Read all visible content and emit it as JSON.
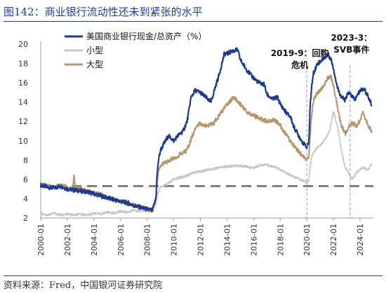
{
  "figure_title": "图142：商业银行流动性还未到紧张的水平",
  "source_note": "资料来源：Fred，中国银河证券研究院",
  "colors": {
    "large_commercial": "#1c3a8f",
    "small": "#c8c8c8",
    "large": "#b8956a",
    "reference_line": "#808080",
    "event_line": "#8fb4da",
    "header_rule": "#243f8a"
  },
  "chart_data": {
    "type": "line",
    "title": "",
    "xlabel": "",
    "ylabel": "",
    "x_unit": "year",
    "xlim": [
      2000.0,
      2025.0
    ],
    "ylim": [
      2,
      20
    ],
    "ytick_values": [
      2,
      4,
      6,
      8,
      10,
      12,
      14,
      16,
      18,
      20
    ],
    "xtick_values": [
      2000,
      2002,
      2004,
      2006,
      2008,
      2010,
      2012,
      2014,
      2016,
      2018,
      2020,
      2022,
      2024
    ],
    "xtick_labels": [
      "2000-01",
      "2002-01",
      "2004-01",
      "2006-01",
      "2008-01",
      "2010-01",
      "2012-01",
      "2014-01",
      "2016-01",
      "2018-01",
      "2020-01",
      "2022-01",
      "2024-01"
    ],
    "grid": false,
    "legend_position": "top-left",
    "series": [
      {
        "name": "美国商业银行现金/总资产（%）",
        "color_key": "large_commercial",
        "x": [
          2000.0,
          2000.5,
          2001.0,
          2001.5,
          2002.0,
          2002.5,
          2003.0,
          2003.5,
          2004.0,
          2004.5,
          2005.0,
          2005.5,
          2006.0,
          2006.5,
          2007.0,
          2007.5,
          2008.0,
          2008.4,
          2008.65,
          2008.75,
          2008.85,
          2009.0,
          2009.3,
          2009.6,
          2010.0,
          2010.3,
          2010.7,
          2011.0,
          2011.3,
          2011.6,
          2012.0,
          2012.4,
          2012.8,
          2013.0,
          2013.4,
          2013.8,
          2014.0,
          2014.4,
          2014.8,
          2015.0,
          2015.4,
          2015.8,
          2016.0,
          2016.4,
          2016.8,
          2017.0,
          2017.4,
          2017.8,
          2018.0,
          2018.4,
          2018.8,
          2019.0,
          2019.4,
          2019.8,
          2020.0,
          2020.15,
          2020.25,
          2020.35,
          2020.5,
          2020.8,
          2021.0,
          2021.3,
          2021.6,
          2021.8,
          2022.0,
          2022.3,
          2022.6,
          2022.9,
          2023.1,
          2023.3,
          2023.6,
          2024.0,
          2024.3,
          2024.6,
          2024.9
        ],
        "values": [
          5.4,
          5.2,
          5.1,
          5.3,
          5.0,
          4.9,
          4.8,
          4.7,
          4.5,
          4.3,
          4.1,
          3.9,
          3.7,
          3.6,
          3.3,
          3.1,
          2.9,
          2.8,
          4.0,
          6.5,
          8.0,
          9.0,
          9.8,
          10.5,
          10.0,
          10.5,
          11.0,
          12.0,
          14.5,
          15.2,
          15.0,
          14.5,
          14.0,
          15.0,
          16.8,
          19.0,
          19.0,
          19.3,
          19.4,
          18.4,
          17.5,
          16.8,
          16.5,
          16.0,
          15.8,
          14.8,
          14.3,
          14.5,
          13.8,
          13.0,
          12.4,
          11.5,
          10.5,
          9.6,
          9.4,
          9.8,
          13.5,
          15.5,
          17.0,
          18.0,
          18.2,
          18.6,
          18.9,
          18.5,
          17.5,
          15.5,
          14.5,
          14.2,
          15.0,
          14.8,
          14.2,
          15.2,
          15.4,
          14.6,
          13.6
        ]
      },
      {
        "name": "小型",
        "color_key": "small",
        "x": [
          2000.0,
          2000.5,
          2001.0,
          2001.5,
          2002.0,
          2002.5,
          2003.0,
          2003.5,
          2004.0,
          2004.5,
          2005.0,
          2005.5,
          2006.0,
          2006.5,
          2007.0,
          2007.5,
          2008.0,
          2008.4,
          2008.65,
          2008.8,
          2009.0,
          2009.5,
          2010.0,
          2010.5,
          2011.0,
          2011.5,
          2012.0,
          2012.5,
          2013.0,
          2013.5,
          2014.0,
          2014.5,
          2015.0,
          2015.5,
          2016.0,
          2016.5,
          2017.0,
          2017.5,
          2018.0,
          2018.5,
          2019.0,
          2019.5,
          2020.0,
          2020.15,
          2020.25,
          2020.4,
          2020.6,
          2020.9,
          2021.2,
          2021.5,
          2021.7,
          2021.85,
          2022.0,
          2022.3,
          2022.6,
          2022.9,
          2023.1,
          2023.4,
          2023.8,
          2024.2,
          2024.6,
          2024.9
        ],
        "values": [
          2.5,
          2.3,
          2.5,
          2.3,
          2.4,
          2.3,
          2.4,
          2.3,
          2.5,
          2.4,
          2.6,
          2.5,
          2.7,
          2.6,
          2.8,
          2.7,
          2.8,
          2.7,
          3.5,
          4.5,
          5.2,
          5.5,
          6.0,
          6.2,
          6.4,
          6.7,
          6.8,
          7.0,
          7.1,
          7.3,
          7.3,
          7.4,
          7.4,
          7.3,
          7.2,
          7.5,
          7.5,
          7.3,
          7.0,
          6.6,
          6.3,
          6.0,
          5.7,
          5.8,
          7.5,
          8.5,
          9.0,
          9.4,
          9.8,
          10.5,
          11.0,
          12.0,
          13.0,
          11.5,
          9.0,
          7.2,
          6.8,
          6.0,
          6.8,
          7.2,
          7.0,
          7.6
        ]
      },
      {
        "name": "大型",
        "color_key": "large",
        "x": [
          2000.0,
          2000.5,
          2001.0,
          2001.5,
          2002.0,
          2002.4,
          2002.5,
          2002.6,
          2003.0,
          2003.5,
          2004.0,
          2004.5,
          2005.0,
          2005.5,
          2006.0,
          2006.5,
          2007.0,
          2007.5,
          2008.0,
          2008.4,
          2008.65,
          2008.75,
          2008.85,
          2009.0,
          2009.5,
          2010.0,
          2010.5,
          2011.0,
          2011.4,
          2011.7,
          2012.0,
          2012.5,
          2013.0,
          2013.5,
          2014.0,
          2014.5,
          2015.0,
          2015.5,
          2016.0,
          2016.5,
          2017.0,
          2017.5,
          2018.0,
          2018.5,
          2019.0,
          2019.5,
          2020.0,
          2020.15,
          2020.25,
          2020.35,
          2020.5,
          2020.8,
          2021.0,
          2021.3,
          2021.6,
          2021.8,
          2022.0,
          2022.3,
          2022.6,
          2022.9,
          2023.1,
          2023.4,
          2023.8,
          2024.2,
          2024.6,
          2024.9
        ],
        "values": [
          5.5,
          5.3,
          5.2,
          5.4,
          5.2,
          5.0,
          6.4,
          5.2,
          5.0,
          4.8,
          4.6,
          4.4,
          4.1,
          3.9,
          3.7,
          3.5,
          3.3,
          3.1,
          2.9,
          2.8,
          4.0,
          5.5,
          6.8,
          7.5,
          7.8,
          8.2,
          8.6,
          9.0,
          10.5,
          11.5,
          11.8,
          11.5,
          11.8,
          12.8,
          13.8,
          14.5,
          13.8,
          13.0,
          12.6,
          12.3,
          12.0,
          12.2,
          11.6,
          10.5,
          9.5,
          8.7,
          8.0,
          8.2,
          10.5,
          12.5,
          14.2,
          15.0,
          15.2,
          15.8,
          16.5,
          16.7,
          15.8,
          13.5,
          11.5,
          10.7,
          11.4,
          11.8,
          11.5,
          12.9,
          11.6,
          10.9
        ]
      }
    ],
    "reference_lines": [
      {
        "axis": "y",
        "value": 5.3,
        "style": "dashed",
        "color_key": "reference_line"
      }
    ],
    "event_lines": [
      {
        "axis": "x",
        "value": 2020.0,
        "label": "2019-9：回购危机",
        "label_lines": [
          "2019-9：回购",
          "危机"
        ]
      },
      {
        "axis": "x",
        "value": 2023.25,
        "label": "2023-3：SVB事件",
        "label_lines": [
          "2023-3：",
          "SVB事件"
        ]
      }
    ]
  }
}
